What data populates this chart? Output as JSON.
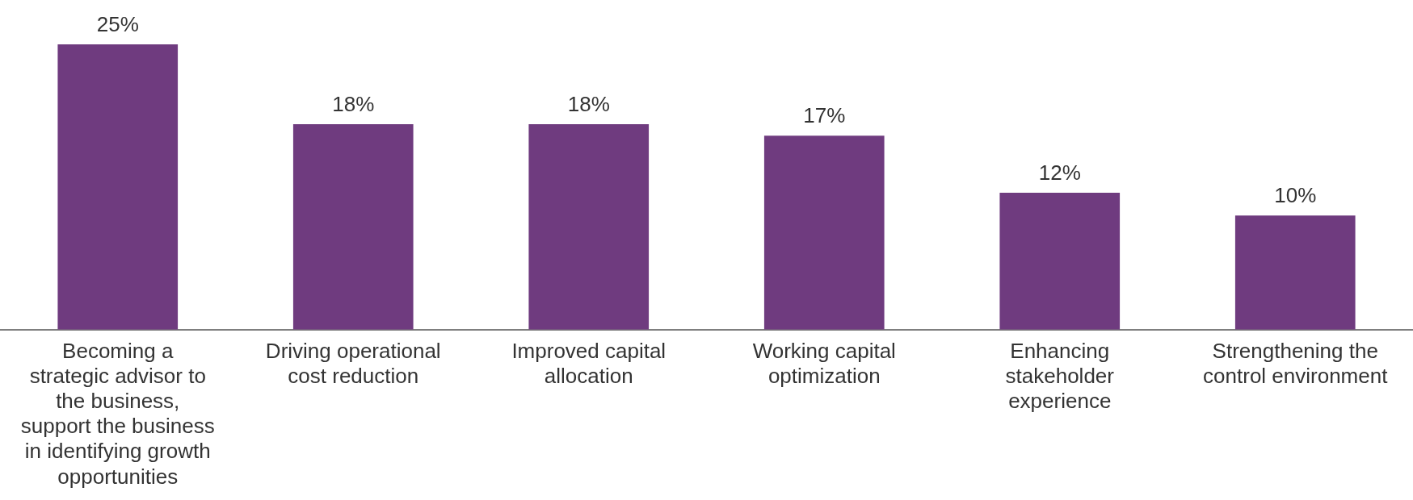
{
  "chart_data": {
    "type": "bar",
    "categories": [
      "Becoming a strategic advisor to the business, support the business in identifying growth opportunities",
      "Driving operational cost reduction",
      "Improved capital allocation",
      "Working capital optimization",
      "Enhancing stakeholder experience",
      "Strengthening the control environment"
    ],
    "values": [
      25,
      18,
      18,
      17,
      12,
      10
    ],
    "value_labels": [
      "25%",
      "18%",
      "18%",
      "17%",
      "12%",
      "10%"
    ],
    "color": "#6f3b7f",
    "grid": false,
    "legend": false
  }
}
